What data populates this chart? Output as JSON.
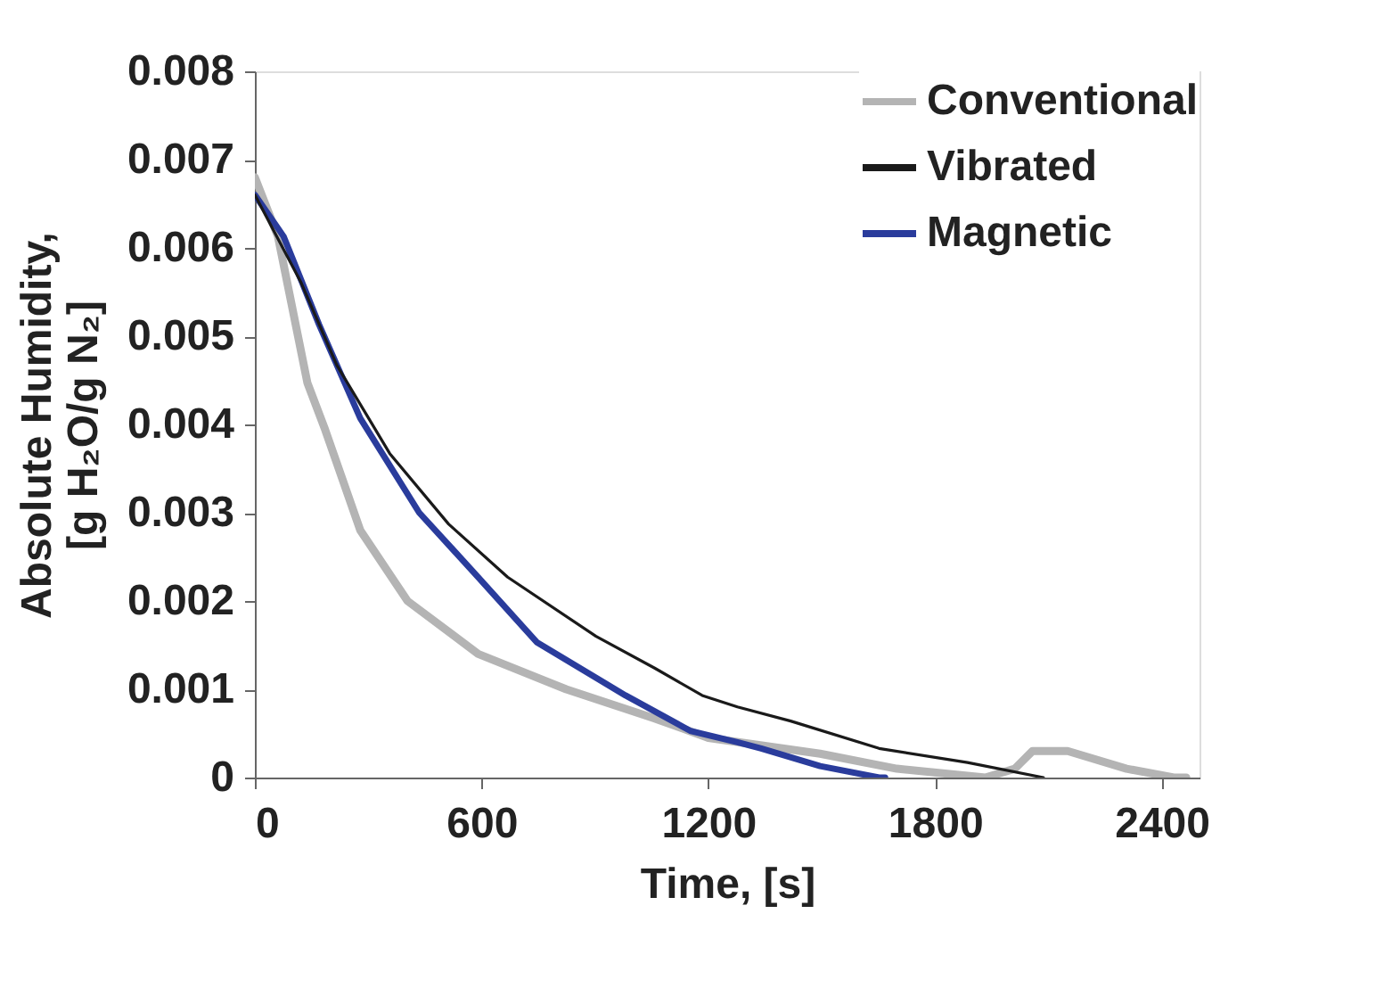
{
  "chart_data": {
    "type": "line",
    "xlabel": "Time, [s]",
    "ylabel": "Absolute Humidity,\n[g H₂O/g N₂]",
    "xlim": [
      0,
      2500
    ],
    "xticks": [
      0,
      600,
      1200,
      1800,
      2400
    ],
    "ylim": [
      0,
      0.008
    ],
    "yticks": [
      0,
      0.001,
      0.002,
      0.003,
      0.004,
      0.005,
      0.006,
      0.007,
      0.008
    ],
    "grid": false,
    "legend": "top right",
    "marker": "none",
    "line_style": "solid",
    "series": [
      {
        "name": "Conventional",
        "color": "#b4b4b4",
        "x": [
          0,
          61,
          92,
          139,
          186,
          279,
          404,
          591,
          824,
          1058,
          1200,
          1496,
          1699,
          1933,
          2011,
          2058,
          2151,
          2307,
          2432,
          2465
        ],
        "values": [
          0.0068,
          0.00613,
          0.00547,
          0.00447,
          0.00394,
          0.0028,
          0.002,
          0.0014,
          0.001,
          0.00067,
          0.00045,
          0.00027,
          0.0001,
          0,
          0.0001,
          0.0003,
          0.0003,
          0.0001,
          0,
          0
        ]
      },
      {
        "name": "Vibrated",
        "color": "#1a1a1a",
        "x": [
          0,
          123,
          217,
          357,
          513,
          669,
          903,
          1058,
          1184,
          1277,
          1418,
          1652,
          1886,
          2087
        ],
        "values": [
          0.0066,
          0.0056,
          0.00467,
          0.00367,
          0.00287,
          0.00227,
          0.0016,
          0.00124,
          0.00093,
          0.0008,
          0.00064,
          0.00033,
          0.00017,
          0
        ]
      },
      {
        "name": "Magnetic",
        "color": "#2a3c9c",
        "x": [
          0,
          76,
          170,
          279,
          435,
          591,
          747,
          981,
          1152,
          1277,
          1340,
          1496,
          1652,
          1668
        ],
        "values": [
          0.0066,
          0.00613,
          0.00513,
          0.00407,
          0.003,
          0.00227,
          0.00153,
          0.00093,
          0.00053,
          0.0004,
          0.00033,
          0.00013,
          0,
          0
        ]
      }
    ]
  }
}
